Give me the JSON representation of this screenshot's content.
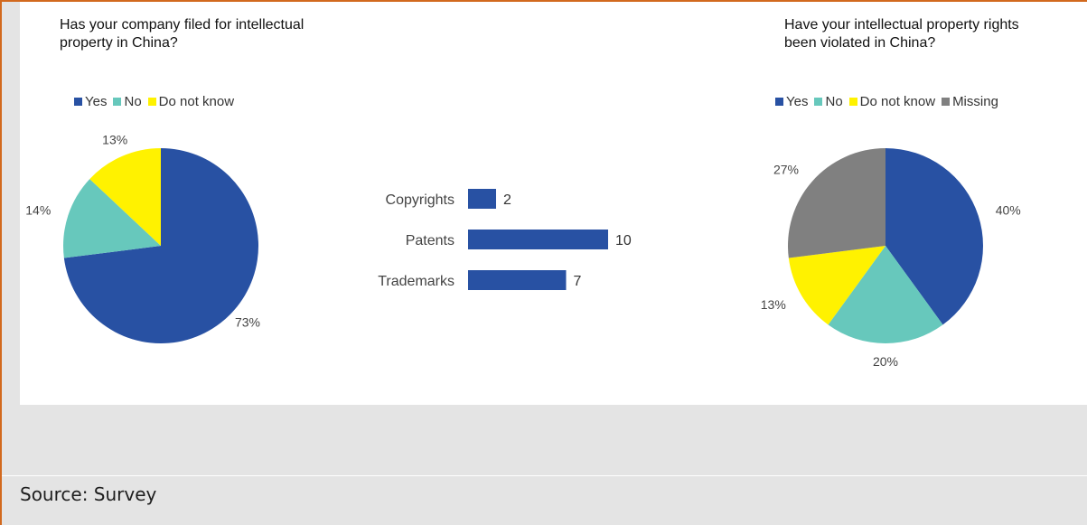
{
  "caption": "Source: Survey",
  "colors": {
    "yes": "#2851a3",
    "no": "#67c8bc",
    "dont_know": "#fff200",
    "missing": "#808080",
    "bar": "#2851a3"
  },
  "chart_data": [
    {
      "type": "pie",
      "title_line1": "Has your company filed for intellectual",
      "title_line2": "property in China?",
      "legend": [
        "Yes",
        "No",
        "Do not know"
      ],
      "slices": [
        {
          "label": "Yes",
          "value": 73,
          "text": "73%"
        },
        {
          "label": "No",
          "value": 14,
          "text": "14%"
        },
        {
          "label": "Do not know",
          "value": 13,
          "text": "13%"
        }
      ]
    },
    {
      "type": "bar",
      "orientation": "horizontal",
      "categories": [
        "Copyrights",
        "Patents",
        "Trademarks"
      ],
      "values": [
        2,
        10,
        7
      ],
      "xlim": [
        0,
        10
      ]
    },
    {
      "type": "pie",
      "title_line1": "Have your intellectual property rights",
      "title_line2": "been violated in China?",
      "legend": [
        "Yes",
        "No",
        "Do not know",
        "Missing"
      ],
      "slices": [
        {
          "label": "Yes",
          "value": 40,
          "text": "40%"
        },
        {
          "label": "No",
          "value": 20,
          "text": "20%"
        },
        {
          "label": "Do not know",
          "value": 13,
          "text": "13%"
        },
        {
          "label": "Missing",
          "value": 27,
          "text": "27%"
        }
      ]
    }
  ]
}
